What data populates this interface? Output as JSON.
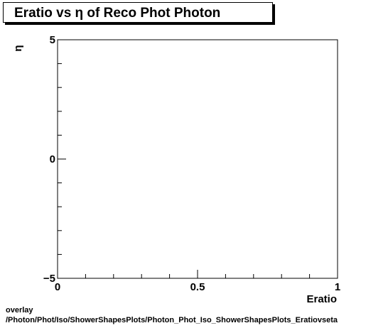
{
  "title": "Eratio vs  η of Reco Phot Photon",
  "footer": {
    "line1": "overlay",
    "line2": "/Photon/Phot/Iso/ShowerShapesPlots/Photon_Phot_Iso_ShowerShapesPlots_Eratiovseta"
  },
  "chart_data": {
    "type": "scatter",
    "title": "Eratio vs  η of Reco Phot Photon",
    "xlabel": "Eratio",
    "ylabel": "η",
    "xlim": [
      0,
      1
    ],
    "ylim": [
      -5,
      5
    ],
    "x_ticks": [
      {
        "value": 0,
        "label": "0"
      },
      {
        "value": 0.5,
        "label": "0.5"
      },
      {
        "value": 1,
        "label": "1"
      }
    ],
    "y_ticks": [
      {
        "value": 5,
        "label": "5"
      },
      {
        "value": 0,
        "label": "0"
      },
      {
        "value": -5,
        "label": "−5"
      }
    ],
    "grid": false,
    "points": []
  }
}
